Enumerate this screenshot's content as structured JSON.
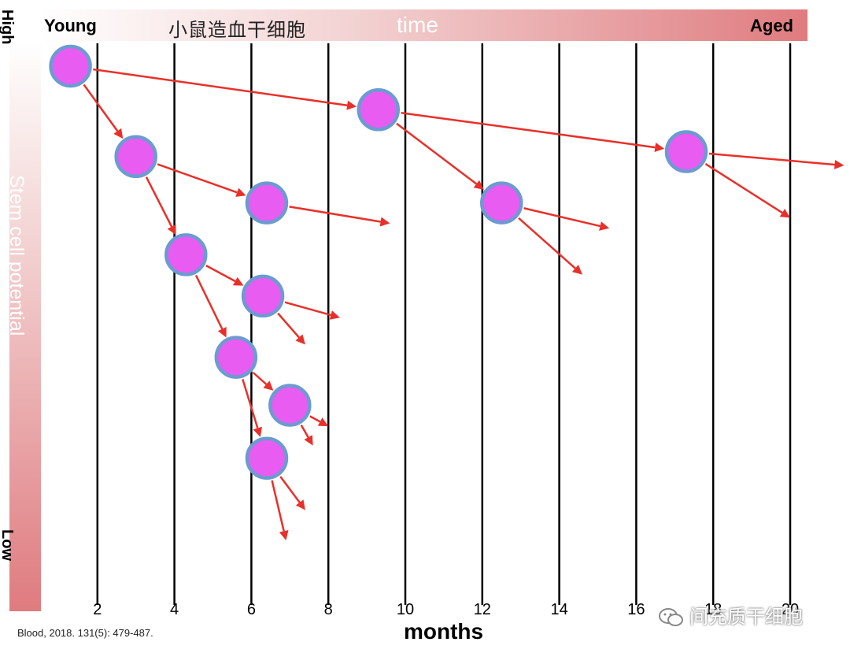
{
  "header": {
    "young": "Young",
    "chinese_title": "小鼠造血干细胞",
    "time": "time",
    "aged": "Aged"
  },
  "y_axis": {
    "high": "High",
    "low": "Low",
    "label": "Stem cell potential"
  },
  "x_axis": {
    "label": "months",
    "ticks": [
      "2",
      "4",
      "6",
      "8",
      "10",
      "12",
      "14",
      "16",
      "18",
      "20"
    ],
    "range": [
      0,
      20.3
    ]
  },
  "cells": [
    {
      "id": "c1",
      "month": 1.3,
      "level": 0
    },
    {
      "id": "c2",
      "month": 9.3,
      "level": 0.79
    },
    {
      "id": "c3",
      "month": 17.3,
      "level": 1.55
    },
    {
      "id": "c4",
      "month": 3.0,
      "level": 1.64
    },
    {
      "id": "c5",
      "month": 6.4,
      "level": 2.48
    },
    {
      "id": "c6",
      "month": 12.5,
      "level": 2.48
    },
    {
      "id": "c7",
      "month": 4.3,
      "level": 3.42
    },
    {
      "id": "c8",
      "month": 6.3,
      "level": 4.17
    },
    {
      "id": "c9",
      "month": 5.6,
      "level": 5.28
    },
    {
      "id": "c10",
      "month": 7.0,
      "level": 6.15
    },
    {
      "id": "c11",
      "month": 6.4,
      "level": 7.11
    }
  ],
  "arrows": [
    {
      "from": "c1",
      "to": "c2"
    },
    {
      "from": "c2",
      "to": "c3"
    },
    {
      "from": "c1",
      "to": "c4"
    },
    {
      "from": "c4",
      "to": "c5"
    },
    {
      "from": "c4",
      "to": "c7"
    },
    {
      "from": "c2",
      "to": "c6"
    },
    {
      "from": "c7",
      "to": "c8"
    },
    {
      "from": "c7",
      "to": "c9"
    },
    {
      "from": "c9",
      "to": "c10"
    },
    {
      "from": "c9",
      "to": "c11"
    },
    {
      "from": "c3",
      "to": [
        21.4,
        1.8
      ]
    },
    {
      "from": "c3",
      "to": [
        20.0,
        2.75
      ]
    },
    {
      "from": "c5",
      "to": [
        9.6,
        2.85
      ]
    },
    {
      "from": "c6",
      "to": [
        15.3,
        2.94
      ]
    },
    {
      "from": "c6",
      "to": [
        14.6,
        3.78
      ]
    },
    {
      "from": "c8",
      "to": [
        8.3,
        4.56
      ]
    },
    {
      "from": "c8",
      "to": [
        7.4,
        5.05
      ]
    },
    {
      "from": "c10",
      "to": [
        8.0,
        6.53
      ]
    },
    {
      "from": "c10",
      "to": [
        7.6,
        6.88
      ]
    },
    {
      "from": "c11",
      "to": [
        7.4,
        8.05
      ]
    },
    {
      "from": "c11",
      "to": [
        6.9,
        8.6
      ]
    }
  ],
  "colors": {
    "cell_fill": "#e85cf2",
    "cell_ring": "#6b9bd1",
    "arrow": "#e8302a",
    "grid": "#000000"
  },
  "citation": "Blood, 2018. 131(5): 479-487.",
  "watermark": "间充质干细胞"
}
